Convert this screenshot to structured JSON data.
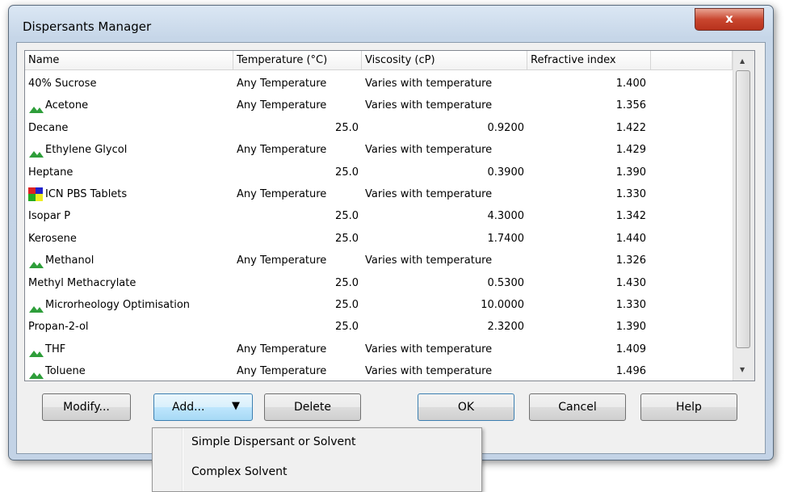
{
  "window": {
    "title": "Dispersants Manager"
  },
  "table": {
    "columns": [
      "Name",
      "Temperature (°C)",
      "Viscosity (cP)",
      "Refractive index"
    ],
    "rows": [
      [
        "40% Sucrose",
        "Any Temperature",
        "Varies with temperature",
        "1.400"
      ],
      [
        "Acetone",
        "Any Temperature",
        "Varies with temperature",
        "1.356"
      ],
      [
        "Decane",
        "25.0",
        "0.9200",
        "1.422"
      ],
      [
        "Ethylene Glycol",
        "Any Temperature",
        "Varies with temperature",
        "1.429"
      ],
      [
        "Heptane",
        "25.0",
        "0.3900",
        "1.390"
      ],
      [
        "ICN PBS Tablets",
        "Any Temperature",
        "Varies with temperature",
        "1.330"
      ],
      [
        "Isopar P",
        "25.0",
        "4.3000",
        "1.342"
      ],
      [
        "Kerosene",
        "25.0",
        "1.7400",
        "1.440"
      ],
      [
        "Methanol",
        "Any Temperature",
        "Varies with temperature",
        "1.326"
      ],
      [
        "Methyl Methacrylate",
        "25.0",
        "0.5300",
        "1.430"
      ],
      [
        "Microrheology Optimisation",
        "25.0",
        "10.0000",
        "1.330"
      ],
      [
        "Propan-2-ol",
        "25.0",
        "2.3200",
        "1.390"
      ],
      [
        "THF",
        "Any Temperature",
        "Varies with temperature",
        "1.409"
      ],
      [
        "Toluene",
        "Any Temperature",
        "Varies with temperature",
        "1.496"
      ]
    ]
  },
  "buttons": [
    "Modify...",
    "Add...",
    "Delete",
    "OK",
    "Cancel",
    "Help"
  ],
  "menu": [
    "Simple Dispersant or Solvent",
    "Complex Solvent"
  ]
}
